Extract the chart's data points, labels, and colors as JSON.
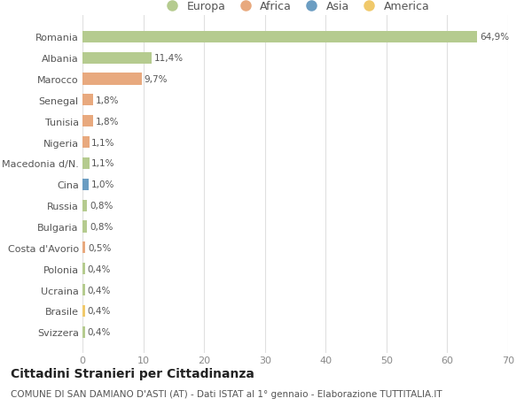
{
  "countries": [
    "Romania",
    "Albania",
    "Marocco",
    "Senegal",
    "Tunisia",
    "Nigeria",
    "Macedonia d/N.",
    "Cina",
    "Russia",
    "Bulgaria",
    "Costa d'Avorio",
    "Polonia",
    "Ucraina",
    "Brasile",
    "Svizzera"
  ],
  "values": [
    64.9,
    11.4,
    9.7,
    1.8,
    1.8,
    1.1,
    1.1,
    1.0,
    0.8,
    0.8,
    0.5,
    0.4,
    0.4,
    0.4,
    0.4
  ],
  "labels": [
    "64,9%",
    "11,4%",
    "9,7%",
    "1,8%",
    "1,8%",
    "1,1%",
    "1,1%",
    "1,0%",
    "0,8%",
    "0,8%",
    "0,5%",
    "0,4%",
    "0,4%",
    "0,4%",
    "0,4%"
  ],
  "colors": [
    "#b5cb8f",
    "#b5cb8f",
    "#e8a97e",
    "#e8a97e",
    "#e8a97e",
    "#e8a97e",
    "#b5cb8f",
    "#6b9dc2",
    "#b5cb8f",
    "#b5cb8f",
    "#e8a97e",
    "#b5cb8f",
    "#b5cb8f",
    "#f0c96b",
    "#b5cb8f"
  ],
  "legend_labels": [
    "Europa",
    "Africa",
    "Asia",
    "America"
  ],
  "legend_colors": [
    "#b5cb8f",
    "#e8a97e",
    "#6b9dc2",
    "#f0c96b"
  ],
  "title": "Cittadini Stranieri per Cittadinanza",
  "subtitle": "COMUNE DI SAN DAMIANO D'ASTI (AT) - Dati ISTAT al 1° gennaio - Elaborazione TUTTITALIA.IT",
  "xlim": [
    0,
    70
  ],
  "xticks": [
    0,
    10,
    20,
    30,
    40,
    50,
    60,
    70
  ],
  "background_color": "#ffffff",
  "grid_color": "#e0e0e0",
  "bar_height": 0.55
}
